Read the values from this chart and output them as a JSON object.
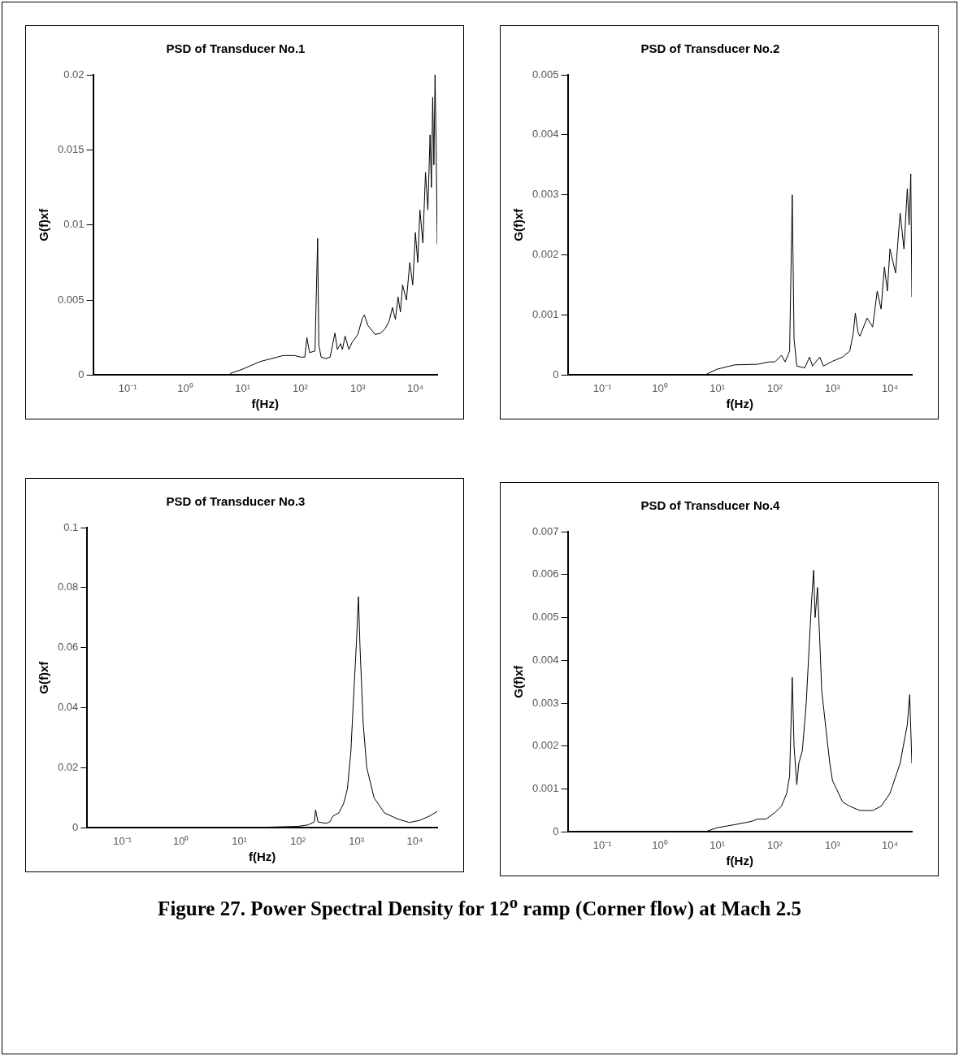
{
  "chart_data": [
    {
      "type": "line",
      "title": "PSD of Transducer No.1",
      "xlabel": "f(Hz)",
      "ylabel": "G(f)xf",
      "log": "x",
      "marker": "none",
      "line_style": "solid",
      "xlim": [
        0.025,
        24000
      ],
      "xticks": [
        {
          "value": 0.1,
          "label": "10⁻¹"
        },
        {
          "value": 1,
          "label": "10⁰"
        },
        {
          "value": 10,
          "label": "10¹"
        },
        {
          "value": 100,
          "label": "10²"
        },
        {
          "value": 1000,
          "label": "10³"
        },
        {
          "value": 10000,
          "label": "10⁴"
        }
      ],
      "ylim": [
        0,
        0.02
      ],
      "yticks": [
        0,
        0.005,
        0.01,
        0.015,
        0.02
      ],
      "x": [
        6,
        10,
        20,
        40,
        50,
        80,
        100,
        120,
        130,
        145,
        180,
        200,
        210,
        230,
        280,
        330,
        400,
        440,
        500,
        540,
        600,
        700,
        800,
        1000,
        1200,
        1300,
        1500,
        2000,
        2500,
        3000,
        3500,
        4000,
        4500,
        5000,
        5500,
        6000,
        7000,
        8000,
        9000,
        10000,
        11000,
        12000,
        13500,
        15000,
        16500,
        18000,
        19000,
        20000,
        21000,
        22000,
        23000,
        24000
      ],
      "series": [
        {
          "color": "#000000",
          "values": [
            0.0001,
            0.0004,
            0.0009,
            0.0012,
            0.0013,
            0.0013,
            0.0012,
            0.0012,
            0.0025,
            0.0015,
            0.0016,
            0.0091,
            0.002,
            0.0012,
            0.0011,
            0.0012,
            0.0028,
            0.0017,
            0.0021,
            0.0017,
            0.0026,
            0.0017,
            0.0022,
            0.0027,
            0.0038,
            0.004,
            0.0033,
            0.0027,
            0.0028,
            0.0031,
            0.0036,
            0.0045,
            0.0037,
            0.0052,
            0.0042,
            0.006,
            0.005,
            0.0075,
            0.006,
            0.0095,
            0.0075,
            0.011,
            0.0088,
            0.0135,
            0.011,
            0.016,
            0.0125,
            0.0185,
            0.014,
            0.02,
            0.015,
            0.0087
          ]
        }
      ]
    },
    {
      "type": "line",
      "title": "PSD of Transducer No.2",
      "xlabel": "f(Hz)",
      "ylabel": "G(f)xf",
      "log": "x",
      "marker": "none",
      "line_style": "solid",
      "xlim": [
        0.025,
        24000
      ],
      "xticks": [
        {
          "value": 0.1,
          "label": "10⁻¹"
        },
        {
          "value": 1,
          "label": "10⁰"
        },
        {
          "value": 10,
          "label": "10¹"
        },
        {
          "value": 100,
          "label": "10²"
        },
        {
          "value": 1000,
          "label": "10³"
        },
        {
          "value": 10000,
          "label": "10⁴"
        }
      ],
      "ylim": [
        0,
        0.005
      ],
      "yticks": [
        0,
        0.001,
        0.002,
        0.003,
        0.004,
        0.005
      ],
      "x": [
        6,
        10,
        20,
        50,
        80,
        100,
        130,
        150,
        180,
        200,
        215,
        240,
        330,
        400,
        450,
        600,
        700,
        1000,
        1500,
        2000,
        2300,
        2500,
        2800,
        3000,
        4000,
        5000,
        6000,
        7000,
        8000,
        9000,
        10000,
        12500,
        15000,
        17500,
        20000,
        21500,
        23000,
        24000
      ],
      "series": [
        {
          "color": "#000000",
          "values": [
            0,
            0.0001,
            0.00017,
            0.00018,
            0.00022,
            0.00022,
            0.00033,
            0.00022,
            0.0004,
            0.003,
            0.0006,
            0.00015,
            0.00012,
            0.0003,
            0.00015,
            0.0003,
            0.00015,
            0.00023,
            0.0003,
            0.0004,
            0.0007,
            0.00103,
            0.0007,
            0.00065,
            0.00095,
            0.0008,
            0.0014,
            0.0011,
            0.0018,
            0.0014,
            0.0021,
            0.0017,
            0.0027,
            0.0021,
            0.0031,
            0.0025,
            0.00335,
            0.0013
          ]
        }
      ]
    },
    {
      "type": "line",
      "title": "PSD of Transducer No.3",
      "xlabel": "f(Hz)",
      "ylabel": "G(f)xf",
      "log": "x",
      "marker": "none",
      "line_style": "solid",
      "xlim": [
        0.025,
        24000
      ],
      "xticks": [
        {
          "value": 0.1,
          "label": "10⁻¹"
        },
        {
          "value": 1,
          "label": "10⁰"
        },
        {
          "value": 10,
          "label": "10¹"
        },
        {
          "value": 100,
          "label": "10²"
        },
        {
          "value": 1000,
          "label": "10³"
        },
        {
          "value": 10000,
          "label": "10⁴"
        }
      ],
      "ylim": [
        0,
        0.1
      ],
      "yticks": [
        0,
        0.02,
        0.04,
        0.06,
        0.08,
        0.1
      ],
      "x": [
        25,
        100,
        150,
        190,
        200,
        220,
        300,
        350,
        400,
        500,
        600,
        700,
        800,
        900,
        1000,
        1080,
        1150,
        1300,
        1500,
        2000,
        3000,
        5000,
        8000,
        12000,
        18000,
        24000
      ],
      "series": [
        {
          "color": "#000000",
          "values": [
            0.0002,
            0.0005,
            0.001,
            0.002,
            0.006,
            0.002,
            0.0015,
            0.002,
            0.004,
            0.005,
            0.008,
            0.013,
            0.025,
            0.045,
            0.062,
            0.077,
            0.06,
            0.035,
            0.02,
            0.01,
            0.005,
            0.003,
            0.0018,
            0.0025,
            0.004,
            0.0055
          ]
        }
      ]
    },
    {
      "type": "line",
      "title": "PSD of Transducer No.4",
      "xlabel": "f(Hz)",
      "ylabel": "G(f)xf",
      "log": "x",
      "marker": "none",
      "line_style": "solid",
      "xlim": [
        0.025,
        24000
      ],
      "xticks": [
        {
          "value": 0.1,
          "label": "10⁻¹"
        },
        {
          "value": 1,
          "label": "10⁰"
        },
        {
          "value": 10,
          "label": "10¹"
        },
        {
          "value": 100,
          "label": "10²"
        },
        {
          "value": 1000,
          "label": "10³"
        },
        {
          "value": 10000,
          "label": "10⁴"
        }
      ],
      "ylim": [
        0,
        0.007
      ],
      "yticks": [
        0,
        0.001,
        0.002,
        0.003,
        0.004,
        0.005,
        0.006,
        0.007
      ],
      "x": [
        6,
        10,
        20,
        40,
        50,
        70,
        100,
        130,
        160,
        180,
        200,
        215,
        240,
        260,
        300,
        350,
        400,
        430,
        470,
        500,
        550,
        600,
        650,
        800,
        900,
        1000,
        1500,
        2000,
        3000,
        5000,
        7000,
        10000,
        15000,
        20000,
        22000,
        24000
      ],
      "series": [
        {
          "color": "#000000",
          "values": [
            0,
            0.0001,
            0.00017,
            0.00025,
            0.0003,
            0.0003,
            0.00045,
            0.0006,
            0.0009,
            0.0013,
            0.0036,
            0.002,
            0.0011,
            0.0016,
            0.0019,
            0.003,
            0.0045,
            0.0053,
            0.0061,
            0.005,
            0.0057,
            0.0045,
            0.0033,
            0.0022,
            0.0016,
            0.0012,
            0.0007,
            0.0006,
            0.0005,
            0.0005,
            0.0006,
            0.0009,
            0.0016,
            0.0025,
            0.0032,
            0.0016
          ]
        }
      ],
      "annotations": [
        "Figure 27. Power Spectral Density for 12$^{o}$ ramp (Corner flow) at Mach 2.5"
      ]
    }
  ]
}
